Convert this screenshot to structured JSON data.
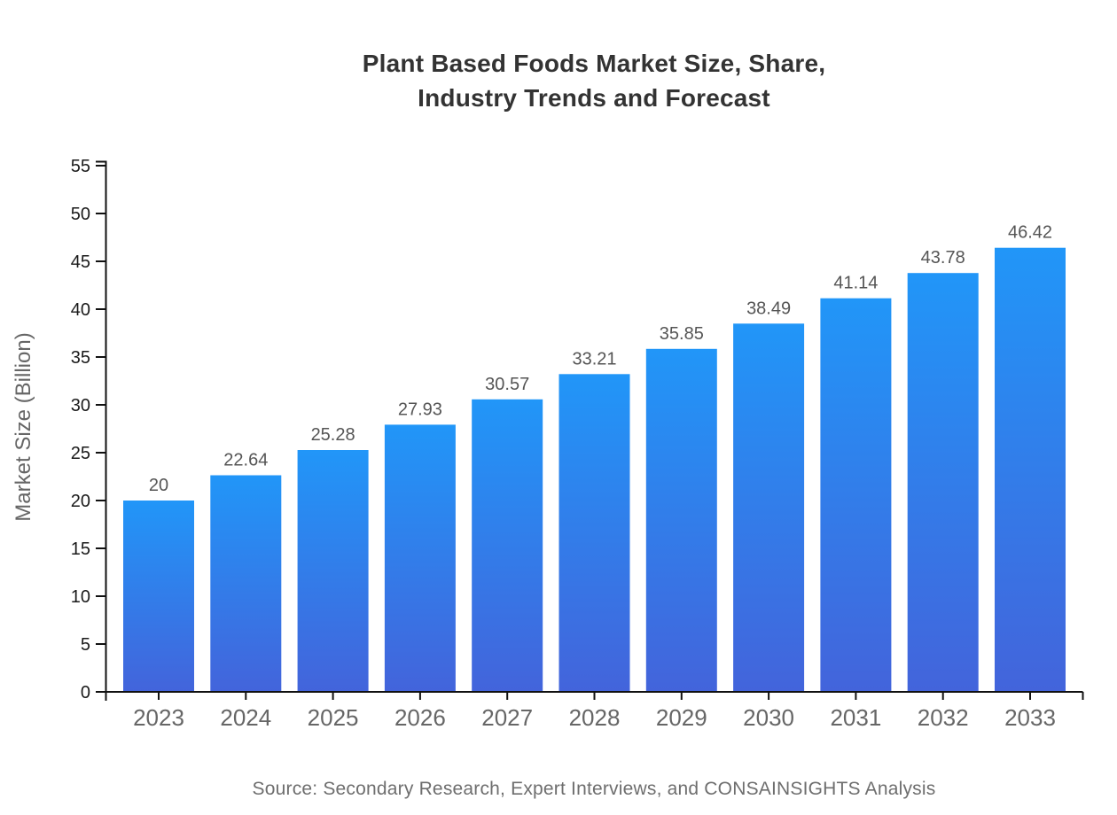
{
  "title": {
    "line1": "Plant Based Foods Market Size, Share,",
    "line2": "Industry Trends and Forecast"
  },
  "source": "Source: Secondary Research, Expert Interviews, and CONSAINSIGHTS Analysis",
  "chart_data": {
    "type": "bar",
    "title": "Plant Based Foods Market Size, Share, Industry Trends and Forecast",
    "categories": [
      "2023",
      "2024",
      "2025",
      "2026",
      "2027",
      "2028",
      "2029",
      "2030",
      "2031",
      "2032",
      "2033"
    ],
    "values": [
      20,
      22.64,
      25.28,
      27.93,
      30.57,
      33.21,
      35.85,
      38.49,
      41.14,
      43.78,
      46.42
    ],
    "value_labels": [
      "20",
      "22.64",
      "25.28",
      "27.93",
      "30.57",
      "33.21",
      "35.85",
      "38.49",
      "41.14",
      "43.78",
      "46.42"
    ],
    "xlabel": "",
    "ylabel": "Market Size (Billion)",
    "ylim": [
      0,
      55
    ],
    "ytick_step": 5,
    "yticks": [
      "0",
      "5",
      "10",
      "15",
      "20",
      "25",
      "30",
      "35",
      "40",
      "45",
      "50",
      "55"
    ],
    "grid": false,
    "legend": null,
    "colors": {
      "bar_gradient_top": "#2196F8",
      "bar_gradient_bottom": "#4364DB",
      "axis": "#111111",
      "ytick_label": "#1a1a1a",
      "xtick_label": "#666666",
      "value_label": "#555555",
      "ylabel_color": "#666666",
      "title_color": "#333333",
      "source_color": "#6e6e6e",
      "background": "#ffffff"
    }
  }
}
